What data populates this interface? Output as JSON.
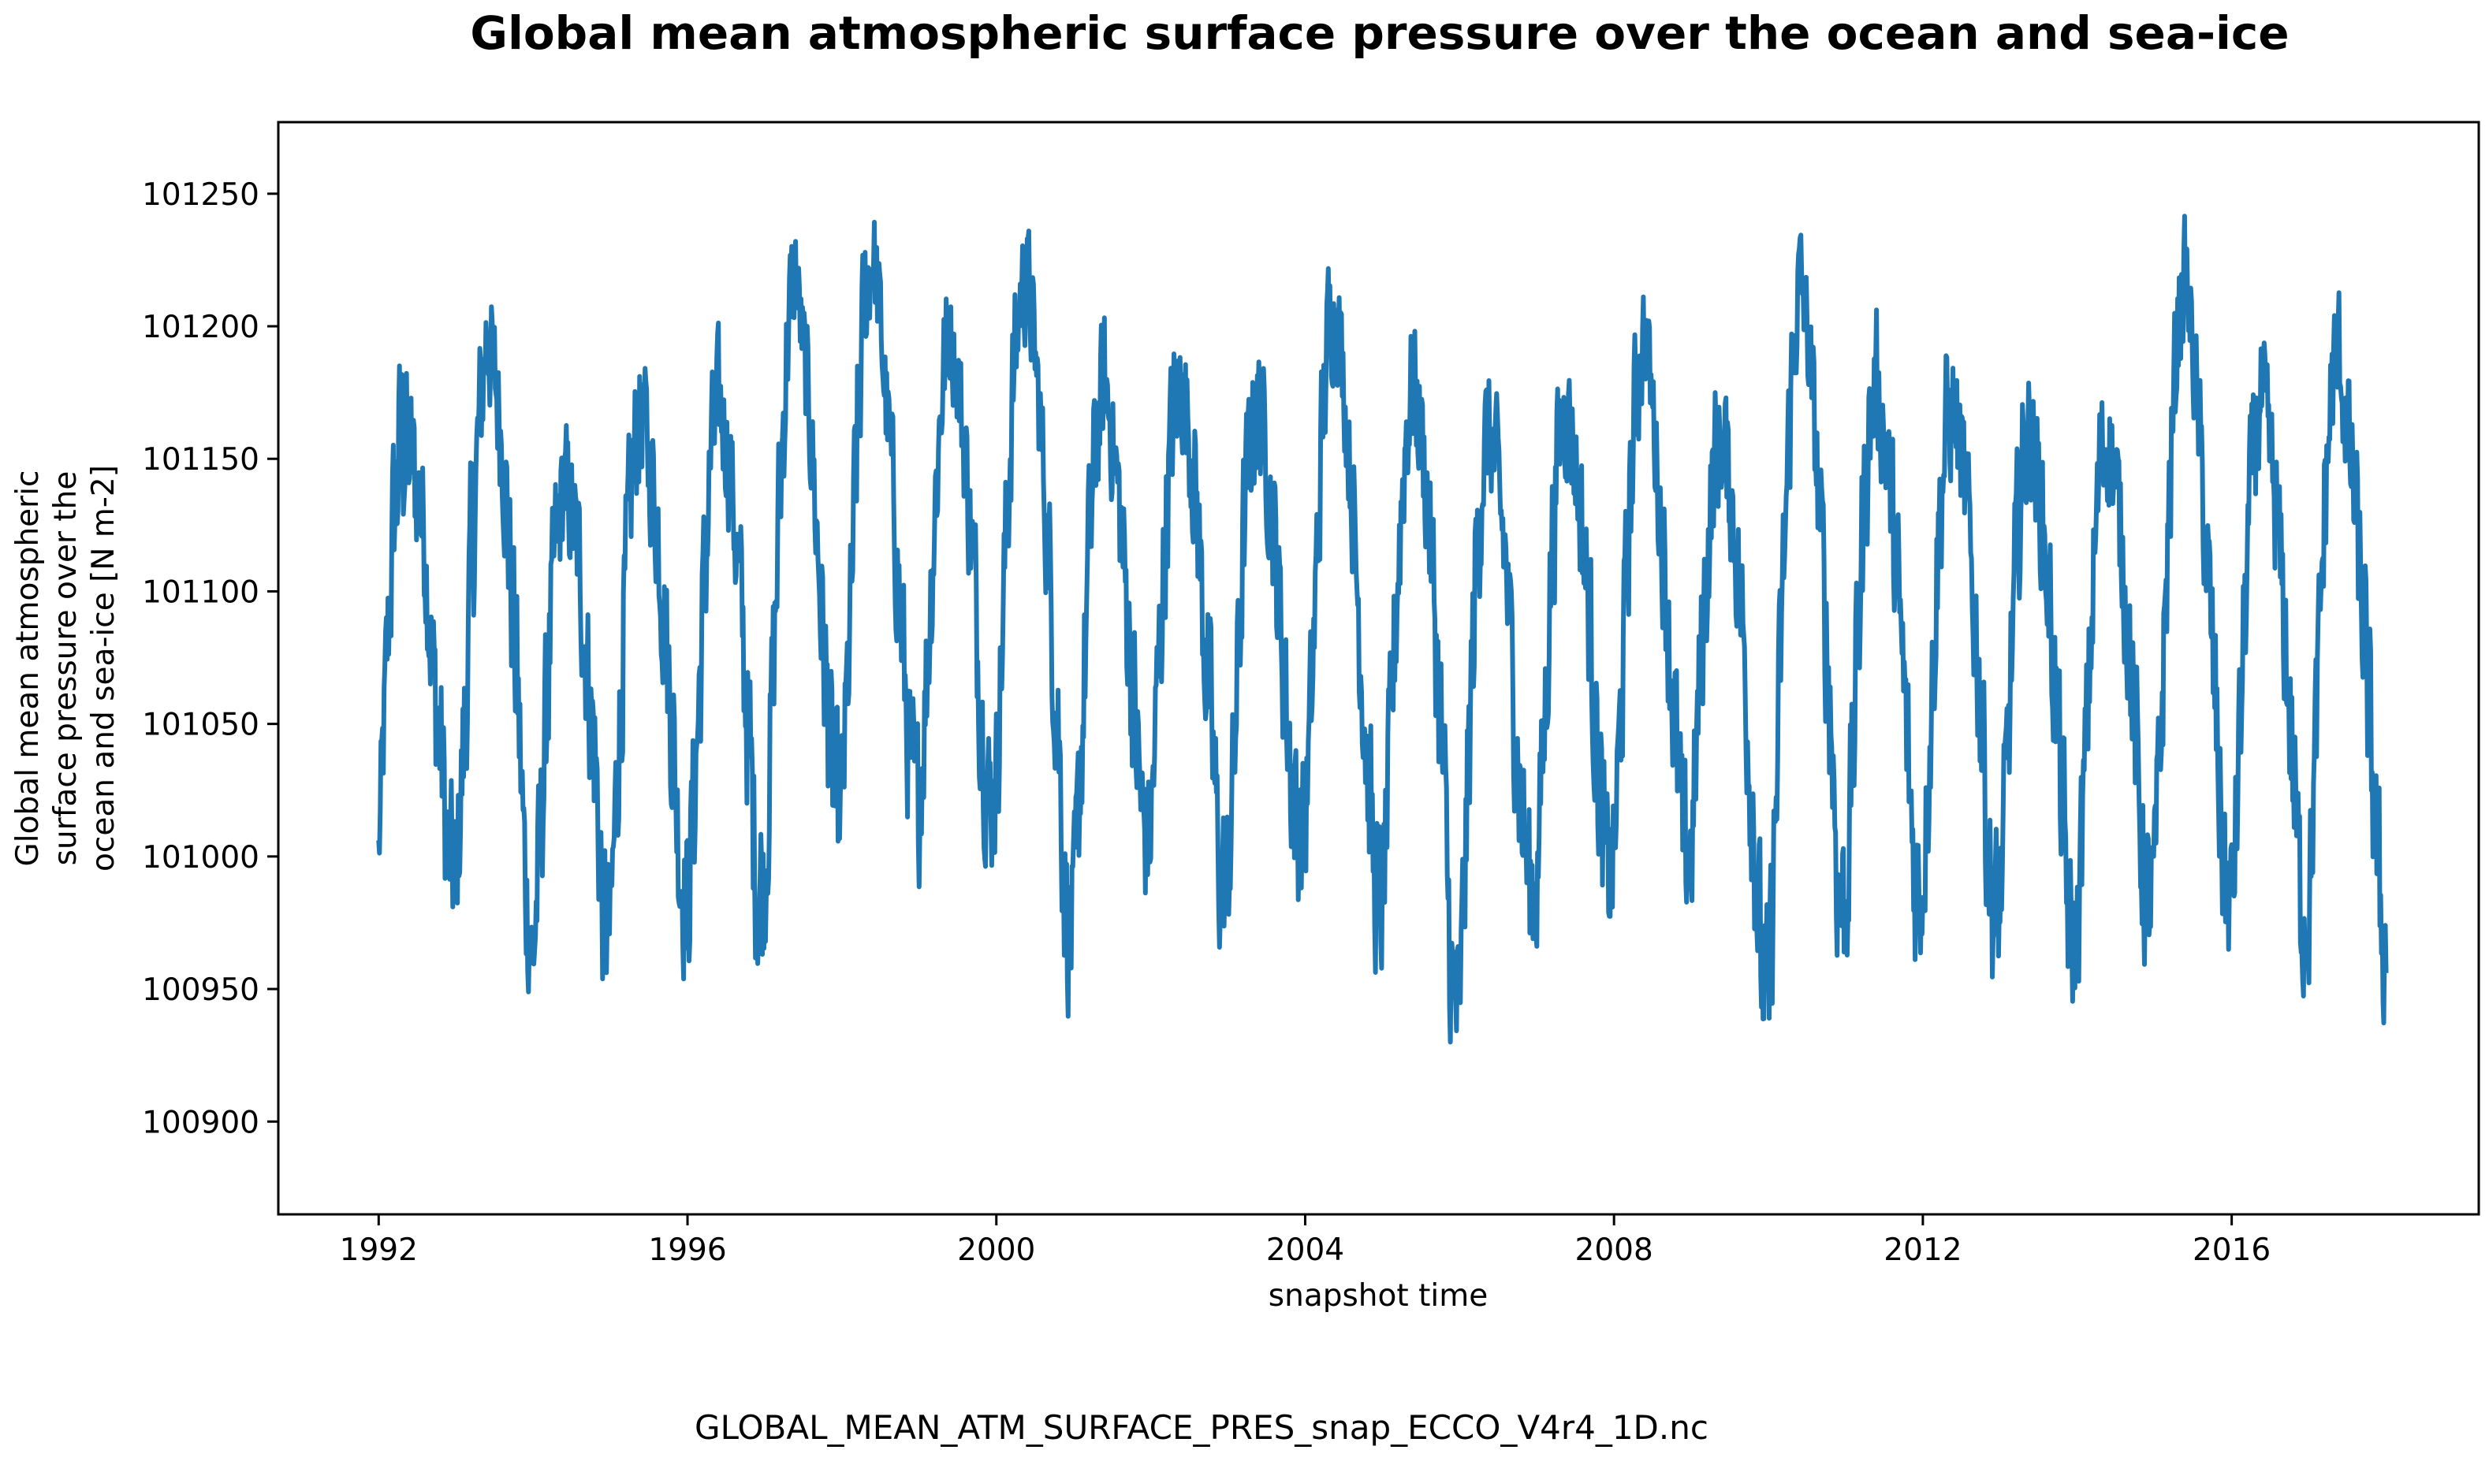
{
  "chart_data": {
    "type": "line",
    "title": "Global mean atmospheric surface pressure over the ocean and sea-ice",
    "xlabel": "snapshot time",
    "ylabel_lines": [
      "Global mean atmospheric",
      "surface pressure over the",
      "ocean and sea-ice [N m-2]"
    ],
    "x_ticks": [
      "1992",
      "1996",
      "2000",
      "2004",
      "2008",
      "2012",
      "2016"
    ],
    "x_tick_values": [
      1992,
      1996,
      2000,
      2004,
      2008,
      2012,
      2016
    ],
    "y_ticks": [
      "100900",
      "100950",
      "101000",
      "101050",
      "101100",
      "101150",
      "101200",
      "101250"
    ],
    "y_tick_values": [
      100900,
      100950,
      101000,
      101050,
      101100,
      101150,
      101200,
      101250
    ],
    "xlim": [
      1990.7,
      2019.2
    ],
    "ylim": [
      100865,
      101277
    ],
    "grid": false,
    "line_color": "#1f77b4",
    "series": [
      {
        "x": [
          1992.0,
          1992.1,
          1992.2,
          1992.3,
          1992.4,
          1992.5,
          1992.6,
          1992.7,
          1992.8,
          1992.9,
          1993.0,
          1993.1,
          1993.2,
          1993.3,
          1993.4,
          1993.5,
          1993.6,
          1993.7,
          1993.8,
          1993.9,
          1994.0,
          1994.1,
          1994.2,
          1994.3,
          1994.4,
          1994.5,
          1994.6,
          1994.7,
          1994.8,
          1994.9,
          1995.0,
          1995.1,
          1995.2,
          1995.3,
          1995.4,
          1995.5,
          1995.6,
          1995.7,
          1995.8,
          1995.9,
          1996.0,
          1996.1,
          1996.2,
          1996.3,
          1996.4,
          1996.5,
          1996.6,
          1996.7,
          1996.8,
          1996.9,
          1997.0,
          1997.1,
          1997.2,
          1997.3,
          1997.4,
          1997.5,
          1997.6,
          1997.7,
          1997.8,
          1997.9,
          1998.0,
          1998.1,
          1998.2,
          1998.3,
          1998.4,
          1998.5,
          1998.6,
          1998.7,
          1998.8,
          1998.9,
          1999.0,
          1999.1,
          1999.2,
          1999.3,
          1999.4,
          1999.5,
          1999.6,
          1999.7,
          1999.8,
          1999.9,
          2000.0,
          2000.1,
          2000.2,
          2000.3,
          2000.4,
          2000.5,
          2000.6,
          2000.7,
          2000.8,
          2000.9,
          2001.0,
          2001.1,
          2001.2,
          2001.3,
          2001.4,
          2001.5,
          2001.6,
          2001.7,
          2001.8,
          2001.9,
          2002.0,
          2002.1,
          2002.2,
          2002.3,
          2002.4,
          2002.5,
          2002.6,
          2002.7,
          2002.8,
          2002.9,
          2003.0,
          2003.1,
          2003.2,
          2003.3,
          2003.4,
          2003.5,
          2003.6,
          2003.7,
          2003.8,
          2003.9,
          2004.0,
          2004.1,
          2004.2,
          2004.3,
          2004.4,
          2004.5,
          2004.6,
          2004.7,
          2004.8,
          2004.9,
          2005.0,
          2005.1,
          2005.2,
          2005.3,
          2005.4,
          2005.5,
          2005.6,
          2005.7,
          2005.8,
          2005.9,
          2006.0,
          2006.1,
          2006.2,
          2006.3,
          2006.4,
          2006.5,
          2006.6,
          2006.7,
          2006.8,
          2006.9,
          2007.0,
          2007.1,
          2007.2,
          2007.3,
          2007.4,
          2007.5,
          2007.6,
          2007.7,
          2007.8,
          2007.9,
          2008.0,
          2008.1,
          2008.2,
          2008.3,
          2008.4,
          2008.5,
          2008.6,
          2008.7,
          2008.8,
          2008.9,
          2009.0,
          2009.1,
          2009.2,
          2009.3,
          2009.4,
          2009.5,
          2009.6,
          2009.7,
          2009.8,
          2009.9,
          2010.0,
          2010.1,
          2010.2,
          2010.3,
          2010.4,
          2010.5,
          2010.6,
          2010.7,
          2010.8,
          2010.9,
          2011.0,
          2011.1,
          2011.2,
          2011.3,
          2011.4,
          2011.5,
          2011.6,
          2011.7,
          2011.8,
          2011.9,
          2012.0,
          2012.1,
          2012.2,
          2012.3,
          2012.4,
          2012.5,
          2012.6,
          2012.7,
          2012.8,
          2012.9,
          2013.0,
          2013.1,
          2013.2,
          2013.3,
          2013.4,
          2013.5,
          2013.6,
          2013.7,
          2013.8,
          2013.9,
          2014.0,
          2014.1,
          2014.2,
          2014.3,
          2014.4,
          2014.5,
          2014.6,
          2014.7,
          2014.8,
          2014.9,
          2015.0,
          2015.1,
          2015.2,
          2015.3,
          2015.4,
          2015.5,
          2015.6,
          2015.7,
          2015.8,
          2015.9,
          2016.0,
          2016.1,
          2016.2,
          2016.3,
          2016.4,
          2016.5,
          2016.6,
          2016.7,
          2016.8,
          2016.9,
          2017.0,
          2017.1,
          2017.2,
          2017.3,
          2017.4,
          2017.5,
          2017.6,
          2017.7,
          2017.8,
          2017.9,
          2018.0
        ],
        "y": [
          101000,
          101070,
          101130,
          101160,
          101150,
          101140,
          101120,
          101070,
          101040,
          101000,
          100990,
          101040,
          101110,
          101160,
          101200,
          101180,
          101160,
          101110,
          101060,
          100990,
          100960,
          101010,
          101070,
          101120,
          101140,
          101130,
          101110,
          101070,
          101040,
          100980,
          100970,
          101040,
          101100,
          101150,
          101170,
          101150,
          101130,
          101090,
          101050,
          101000,
          100980,
          101030,
          101090,
          101150,
          101170,
          101160,
          101130,
          101090,
          101040,
          100990,
          100990,
          101060,
          101140,
          101200,
          101220,
          101190,
          101160,
          101110,
          101060,
          101020,
          101020,
          101080,
          101160,
          101210,
          101230,
          101200,
          101160,
          101120,
          101070,
          101030,
          101020,
          101070,
          101130,
          101180,
          101200,
          101180,
          101150,
          101110,
          101060,
          101020,
          101030,
          101100,
          101170,
          101210,
          101220,
          101190,
          101150,
          101100,
          101050,
          100980,
          100970,
          101040,
          101110,
          101160,
          101180,
          101160,
          101130,
          101090,
          101050,
          101010,
          101010,
          101070,
          101130,
          101170,
          101180,
          101160,
          101130,
          101080,
          101040,
          100990,
          100990,
          101050,
          101120,
          101160,
          101170,
          101150,
          101120,
          101080,
          101040,
          101010,
          101010,
          101070,
          101150,
          101200,
          101210,
          101180,
          101140,
          101090,
          101040,
          100990,
          100980,
          101040,
          101110,
          101160,
          101180,
          101160,
          101130,
          101080,
          101020,
          100950,
          100940,
          101020,
          101100,
          101150,
          101160,
          101140,
          101110,
          101060,
          101020,
          100990,
          100990,
          101050,
          101120,
          101160,
          101170,
          101150,
          101120,
          101080,
          101030,
          100990,
          101000,
          101060,
          101130,
          101180,
          101200,
          101170,
          101130,
          101090,
          101040,
          101000,
          101000,
          101060,
          101110,
          101150,
          101160,
          101140,
          101110,
          101070,
          101020,
          100960,
          100940,
          101020,
          101110,
          101180,
          101220,
          101200,
          101160,
          101110,
          101060,
          100990,
          100980,
          101040,
          101110,
          101160,
          101180,
          101160,
          101130,
          101090,
          101040,
          100990,
          100990,
          101050,
          101120,
          101160,
          101170,
          101150,
          101120,
          101080,
          101030,
          100980,
          100980,
          101040,
          101110,
          101150,
          101160,
          101140,
          101110,
          101070,
          101020,
          100970,
          100970,
          101030,
          101100,
          101150,
          101160,
          101140,
          101110,
          101070,
          101020,
          100980,
          100990,
          101060,
          101140,
          101200,
          101220,
          101190,
          101150,
          101100,
          101050,
          100990,
          100980,
          101040,
          101110,
          101160,
          101170,
          101150,
          101120,
          101080,
          101030,
          100980,
          100980,
          101050,
          101130,
          101180,
          101190,
          101160,
          101130,
          101090,
          101040,
          100990,
          100960
        ],
        "amp": [
          30,
          40,
          50,
          55,
          45,
          40,
          40,
          45,
          50,
          45,
          40,
          50,
          55,
          45,
          35,
          35,
          40,
          50,
          55,
          45,
          40,
          45,
          50,
          40,
          35,
          35,
          40,
          45,
          50,
          45,
          40,
          45,
          50,
          40,
          35,
          35,
          40,
          45,
          50,
          45,
          45,
          50,
          50,
          40,
          35,
          35,
          40,
          45,
          55,
          50,
          45,
          50,
          50,
          40,
          30,
          30,
          35,
          45,
          50,
          45,
          40,
          45,
          50,
          40,
          30,
          30,
          35,
          45,
          50,
          45,
          40,
          45,
          45,
          40,
          30,
          30,
          35,
          45,
          50,
          45,
          40,
          45,
          45,
          35,
          30,
          30,
          35,
          45,
          55,
          50,
          45,
          50,
          50,
          40,
          35,
          35,
          40,
          45,
          50,
          45,
          40,
          45,
          45,
          40,
          35,
          35,
          40,
          45,
          50,
          45,
          40,
          45,
          45,
          40,
          35,
          35,
          40,
          45,
          50,
          45,
          40,
          45,
          45,
          35,
          30,
          30,
          35,
          45,
          50,
          45,
          40,
          45,
          50,
          40,
          35,
          35,
          40,
          50,
          55,
          50,
          45,
          50,
          50,
          40,
          35,
          35,
          40,
          45,
          50,
          45,
          40,
          45,
          45,
          40,
          35,
          35,
          40,
          45,
          50,
          45,
          40,
          45,
          45,
          40,
          30,
          30,
          35,
          45,
          50,
          45,
          40,
          45,
          45,
          40,
          35,
          35,
          40,
          50,
          55,
          50,
          50,
          55,
          50,
          40,
          30,
          30,
          35,
          45,
          55,
          50,
          45,
          50,
          50,
          40,
          35,
          35,
          40,
          45,
          50,
          45,
          40,
          45,
          45,
          40,
          35,
          35,
          40,
          45,
          50,
          45,
          40,
          45,
          45,
          40,
          35,
          35,
          40,
          45,
          50,
          45,
          40,
          45,
          45,
          40,
          35,
          35,
          40,
          45,
          50,
          45,
          40,
          45,
          45,
          35,
          30,
          30,
          35,
          45,
          50,
          45,
          40,
          45,
          45,
          40,
          35,
          35,
          40,
          45,
          50,
          45,
          40,
          45,
          45,
          40,
          35,
          35,
          40,
          45,
          50,
          50,
          45
        ]
      }
    ],
    "caption": "GLOBAL_MEAN_ATM_SURFACE_PRES_snap_ECCO_V4r4_1D.nc"
  }
}
